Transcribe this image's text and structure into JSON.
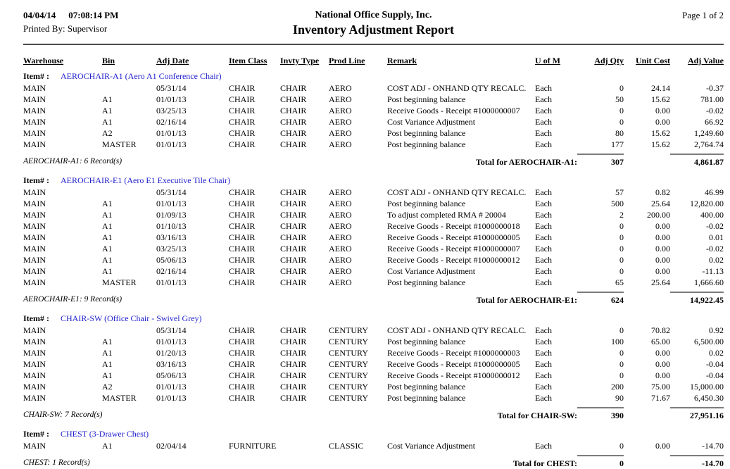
{
  "colors": {
    "link_blue": "#2121ce",
    "header_rule": "#4d4d4d",
    "total_rule": "#7c7c7c"
  },
  "page_header": {
    "date": "04/04/14",
    "time": "07:08:14 PM",
    "printed_by": "Printed By: Supervisor",
    "company": "National Office Supply, Inc.",
    "title": "Inventory Adjustment Report",
    "page_info": "Page 1 of 2"
  },
  "table": {
    "item_label": "Item# :",
    "columns": [
      "Warehouse",
      "Bin",
      "Adj Date",
      "Item Class",
      "Invty Type",
      "Prod Line",
      "Remark",
      "U of M",
      "Adj Qty",
      "Unit Cost",
      "Adj Value"
    ],
    "groups": [
      {
        "item": "AEROCHAIR-A1 (Aero A1 Conference Chair)",
        "rows": [
          [
            "MAIN",
            "",
            "05/31/14",
            "CHAIR",
            "CHAIR",
            "AERO",
            "COST ADJ - ONHAND QTY RECALC.",
            "Each",
            "0",
            "24.14",
            "-0.37"
          ],
          [
            "MAIN",
            "A1",
            "01/01/13",
            "CHAIR",
            "CHAIR",
            "AERO",
            "Post beginning balance",
            "Each",
            "50",
            "15.62",
            "781.00"
          ],
          [
            "MAIN",
            "A1",
            "03/25/13",
            "CHAIR",
            "CHAIR",
            "AERO",
            "Receive Goods - Receipt #1000000007",
            "Each",
            "0",
            "0.00",
            "-0.02"
          ],
          [
            "MAIN",
            "A1",
            "02/16/14",
            "CHAIR",
            "CHAIR",
            "AERO",
            "Cost Variance Adjustment",
            "Each",
            "0",
            "0.00",
            "66.92"
          ],
          [
            "MAIN",
            "A2",
            "01/01/13",
            "CHAIR",
            "CHAIR",
            "AERO",
            "Post beginning balance",
            "Each",
            "80",
            "15.62",
            "1,249.60"
          ],
          [
            "MAIN",
            "MASTER",
            "01/01/13",
            "CHAIR",
            "CHAIR",
            "AERO",
            "Post beginning balance",
            "Each",
            "177",
            "15.62",
            "2,764.74"
          ]
        ],
        "record_count": "AEROCHAIR-A1: 6 Record(s)",
        "total_label": "Total for AEROCHAIR-A1:",
        "total_qty": "307",
        "total_value": "4,861.87"
      },
      {
        "item": "AEROCHAIR-E1 (Aero E1 Executive Tile Chair)",
        "rows": [
          [
            "MAIN",
            "",
            "05/31/14",
            "CHAIR",
            "CHAIR",
            "AERO",
            "COST ADJ - ONHAND QTY RECALC.",
            "Each",
            "57",
            "0.82",
            "46.99"
          ],
          [
            "MAIN",
            "A1",
            "01/01/13",
            "CHAIR",
            "CHAIR",
            "AERO",
            "Post beginning balance",
            "Each",
            "500",
            "25.64",
            "12,820.00"
          ],
          [
            "MAIN",
            "A1",
            "01/09/13",
            "CHAIR",
            "CHAIR",
            "AERO",
            "To adjust completed RMA # 20004",
            "Each",
            "2",
            "200.00",
            "400.00"
          ],
          [
            "MAIN",
            "A1",
            "01/10/13",
            "CHAIR",
            "CHAIR",
            "AERO",
            "Receive Goods - Receipt #1000000018",
            "Each",
            "0",
            "0.00",
            "-0.02"
          ],
          [
            "MAIN",
            "A1",
            "03/16/13",
            "CHAIR",
            "CHAIR",
            "AERO",
            "Receive Goods - Receipt #1000000005",
            "Each",
            "0",
            "0.00",
            "0.01"
          ],
          [
            "MAIN",
            "A1",
            "03/25/13",
            "CHAIR",
            "CHAIR",
            "AERO",
            "Receive Goods - Receipt #1000000007",
            "Each",
            "0",
            "0.00",
            "-0.02"
          ],
          [
            "MAIN",
            "A1",
            "05/06/13",
            "CHAIR",
            "CHAIR",
            "AERO",
            "Receive Goods - Receipt #1000000012",
            "Each",
            "0",
            "0.00",
            "0.02"
          ],
          [
            "MAIN",
            "A1",
            "02/16/14",
            "CHAIR",
            "CHAIR",
            "AERO",
            "Cost Variance Adjustment",
            "Each",
            "0",
            "0.00",
            "-11.13"
          ],
          [
            "MAIN",
            "MASTER",
            "01/01/13",
            "CHAIR",
            "CHAIR",
            "AERO",
            "Post beginning balance",
            "Each",
            "65",
            "25.64",
            "1,666.60"
          ]
        ],
        "record_count": "AEROCHAIR-E1: 9 Record(s)",
        "total_label": "Total for AEROCHAIR-E1:",
        "total_qty": "624",
        "total_value": "14,922.45"
      },
      {
        "item": "CHAIR-SW (Office Chair - Swivel Grey)",
        "rows": [
          [
            "MAIN",
            "",
            "05/31/14",
            "CHAIR",
            "CHAIR",
            "CENTURY",
            "COST ADJ - ONHAND QTY RECALC.",
            "Each",
            "0",
            "70.82",
            "0.92"
          ],
          [
            "MAIN",
            "A1",
            "01/01/13",
            "CHAIR",
            "CHAIR",
            "CENTURY",
            "Post beginning balance",
            "Each",
            "100",
            "65.00",
            "6,500.00"
          ],
          [
            "MAIN",
            "A1",
            "01/20/13",
            "CHAIR",
            "CHAIR",
            "CENTURY",
            "Receive Goods - Receipt #1000000003",
            "Each",
            "0",
            "0.00",
            "0.02"
          ],
          [
            "MAIN",
            "A1",
            "03/16/13",
            "CHAIR",
            "CHAIR",
            "CENTURY",
            "Receive Goods - Receipt #1000000005",
            "Each",
            "0",
            "0.00",
            "-0.04"
          ],
          [
            "MAIN",
            "A1",
            "05/06/13",
            "CHAIR",
            "CHAIR",
            "CENTURY",
            "Receive Goods - Receipt #1000000012",
            "Each",
            "0",
            "0.00",
            "-0.04"
          ],
          [
            "MAIN",
            "A2",
            "01/01/13",
            "CHAIR",
            "CHAIR",
            "CENTURY",
            "Post beginning balance",
            "Each",
            "200",
            "75.00",
            "15,000.00"
          ],
          [
            "MAIN",
            "MASTER",
            "01/01/13",
            "CHAIR",
            "CHAIR",
            "CENTURY",
            "Post beginning balance",
            "Each",
            "90",
            "71.67",
            "6,450.30"
          ]
        ],
        "record_count": "CHAIR-SW: 7 Record(s)",
        "total_label": "Total for CHAIR-SW:",
        "total_qty": "390",
        "total_value": "27,951.16"
      },
      {
        "item": "CHEST (3-Drawer Chest)",
        "rows": [
          [
            "MAIN",
            "A1",
            "02/04/14",
            "FURNITURE",
            "",
            "CLASSIC",
            "Cost Variance Adjustment",
            "Each",
            "0",
            "0.00",
            "-14.70"
          ]
        ],
        "record_count": "CHEST: 1 Record(s)",
        "total_label": "Total for CHEST:",
        "total_qty": "0",
        "total_value": "-14.70"
      }
    ]
  }
}
